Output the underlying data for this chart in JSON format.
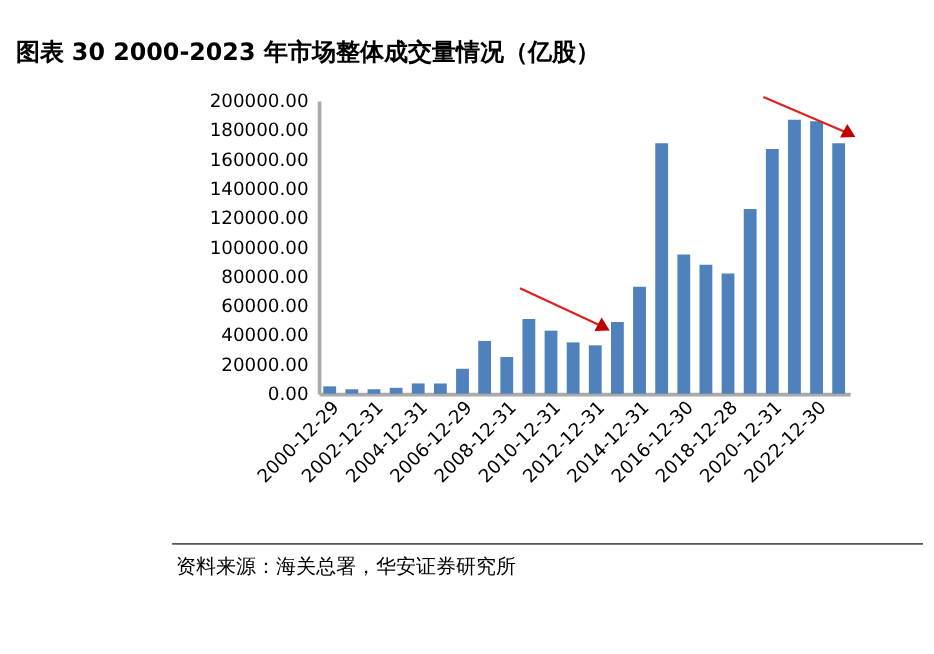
{
  "chart_data": {
    "type": "bar",
    "title": "图表 30 2000-2023 年市场整体成交量情况（亿股）",
    "categories": [
      "2000-12-29",
      null,
      "2002-12-31",
      null,
      "2004-12-31",
      null,
      "2006-12-29",
      null,
      "2008-12-31",
      null,
      "2010-12-31",
      null,
      "2012-12-31",
      null,
      "2014-12-31",
      null,
      "2016-12-30",
      null,
      "2018-12-28",
      null,
      "2020-12-31",
      null,
      "2022-12-30",
      null
    ],
    "values": [
      5000,
      3000,
      3000,
      4000,
      7000,
      7000,
      17000,
      36000,
      25000,
      51000,
      43000,
      35000,
      33000,
      49000,
      73000,
      171000,
      95000,
      88000,
      82000,
      126000,
      167000,
      187000,
      186000,
      171000
    ],
    "color": "#4f81bd",
    "ylim": [
      0,
      200000
    ],
    "yticks": [
      {
        "value": 0,
        "label": "0.00"
      },
      {
        "value": 20000,
        "label": "20000.00"
      },
      {
        "value": 40000,
        "label": "40000.00"
      },
      {
        "value": 60000,
        "label": "60000.00"
      },
      {
        "value": 80000,
        "label": "80000.00"
      },
      {
        "value": 100000,
        "label": "100000.00"
      },
      {
        "value": 120000,
        "label": "120000.00"
      },
      {
        "value": 140000,
        "label": "140000.00"
      },
      {
        "value": 160000,
        "label": "160000.00"
      },
      {
        "value": 180000,
        "label": "180000.00"
      },
      {
        "value": 200000,
        "label": "200000.00"
      }
    ],
    "grid": false,
    "annotations": [
      "资料来源：海关总署，华安证券研究所"
    ]
  }
}
